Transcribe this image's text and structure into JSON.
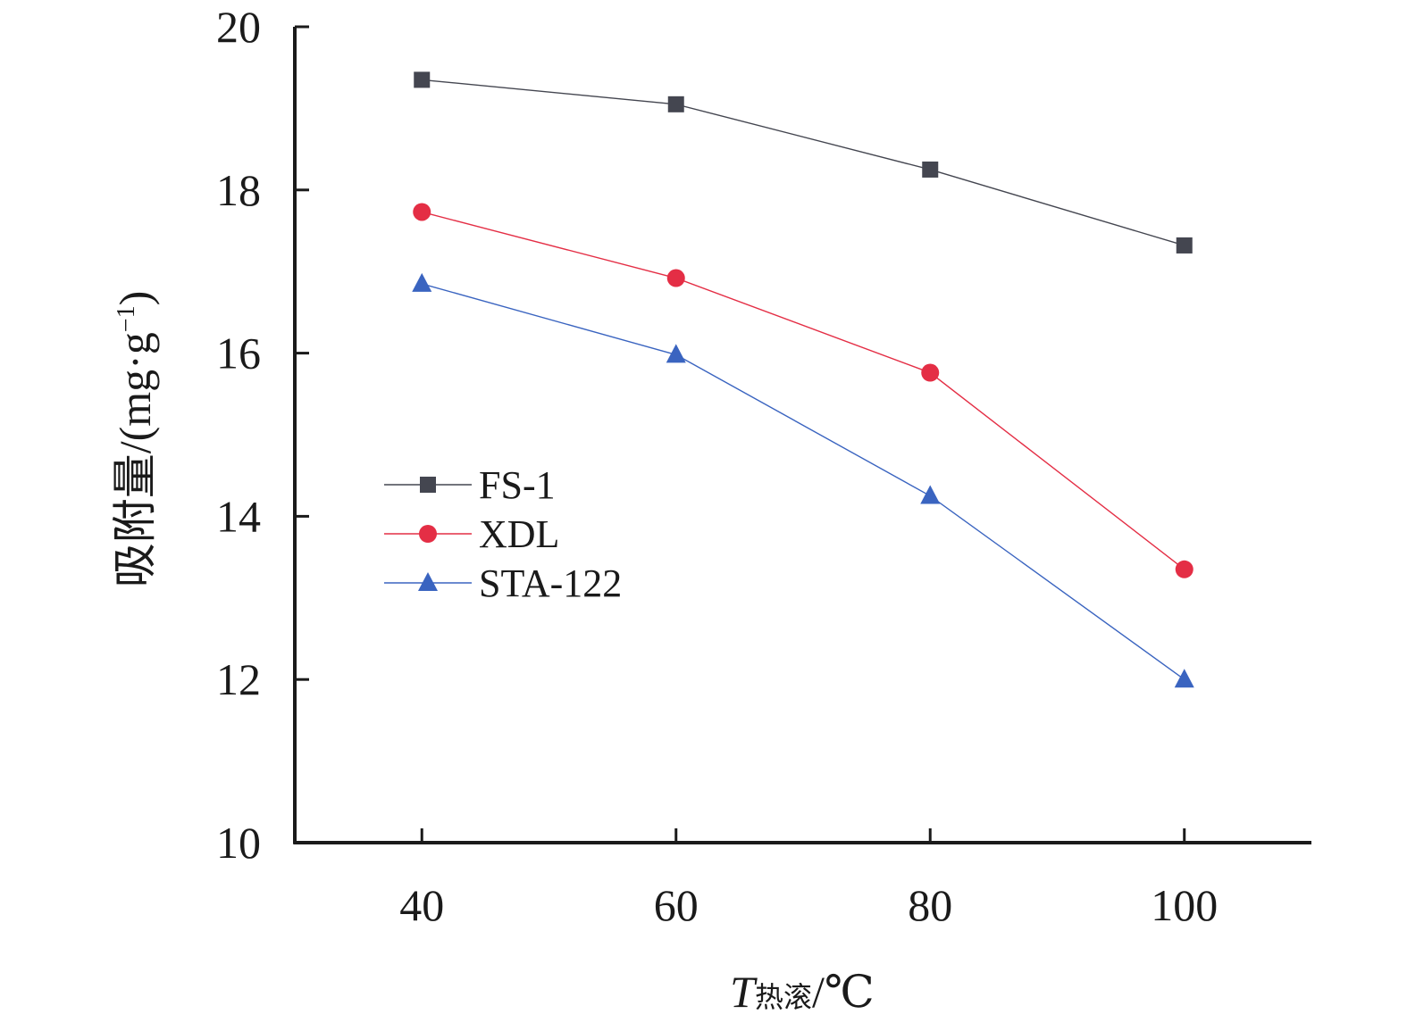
{
  "chart_data": {
    "type": "line",
    "x": [
      40,
      60,
      80,
      100
    ],
    "xlim": [
      30,
      110
    ],
    "ylim": [
      10,
      20
    ],
    "xticks": [
      "40",
      "60",
      "80",
      "100"
    ],
    "yticks": [
      "10",
      "12",
      "14",
      "16",
      "18",
      "20"
    ],
    "xlabel": {
      "main": "T",
      "sub": "热滚",
      "unit": "/℃"
    },
    "ylabel": {
      "main": "吸附量/(mg·g",
      "sup": "−1",
      "close": ")"
    },
    "legend_position": "center-left",
    "grid": false,
    "series": [
      {
        "name": "FS-1",
        "values": [
          19.35,
          19.05,
          18.25,
          17.32
        ],
        "color": "#444650",
        "marker": "square"
      },
      {
        "name": "XDL",
        "values": [
          17.73,
          16.92,
          15.76,
          13.35
        ],
        "color": "#e42e45",
        "marker": "circle"
      },
      {
        "name": "STA-122",
        "values": [
          16.85,
          15.98,
          14.25,
          12.0
        ],
        "color": "#3a64c0",
        "marker": "triangle"
      }
    ]
  }
}
